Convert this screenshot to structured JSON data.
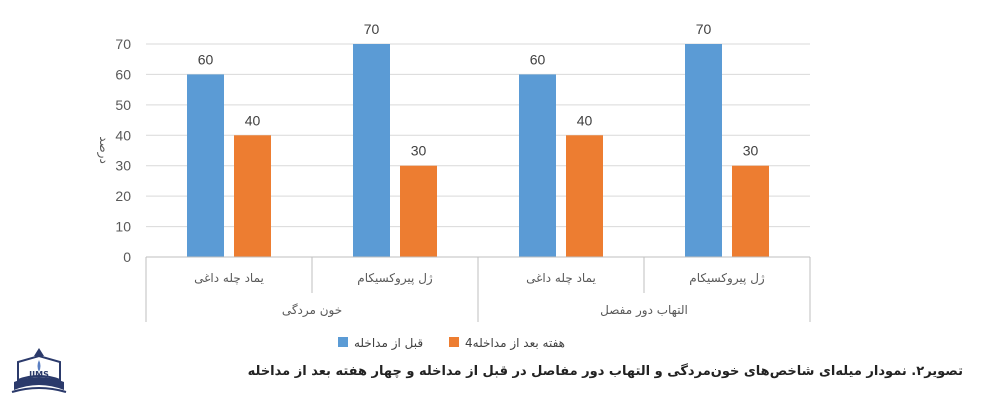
{
  "chart_data": {
    "type": "bar",
    "ylabel": "درصد",
    "ylim": [
      0,
      70
    ],
    "yticks": [
      0,
      10,
      20,
      30,
      40,
      50,
      60,
      70
    ],
    "grid": true,
    "legend_position": "bottom",
    "groups": [
      {
        "label": "خون مردگی",
        "categories": [
          "یماد چله داغی",
          "ژل پیروکسیکام"
        ]
      },
      {
        "label": "التهاب دور مفصل",
        "categories": [
          "یماد چله داغی",
          "ژل پیروکسیکام"
        ]
      }
    ],
    "categories": [
      "یماد چله داغی",
      "ژل پیروکسیکام",
      "یماد چله داغی",
      "ژل پیروکسیکام"
    ],
    "series": [
      {
        "name": "قبل از مداخله",
        "color": "#5B9BD5",
        "values": [
          60,
          70,
          60,
          70
        ]
      },
      {
        "name": "4هفته بعد از مداخله",
        "color": "#ED7D31",
        "values": [
          40,
          30,
          40,
          30
        ]
      }
    ]
  },
  "caption": "تصویر۲. نمودار میله‌ای شاخص‌های خون‌مردگی و التهاب دور مفاصل در قبل از مداخله و چهار هفته بعد از مداخله",
  "logo": {
    "text": "JIMS",
    "icon": "book-logo-icon"
  }
}
